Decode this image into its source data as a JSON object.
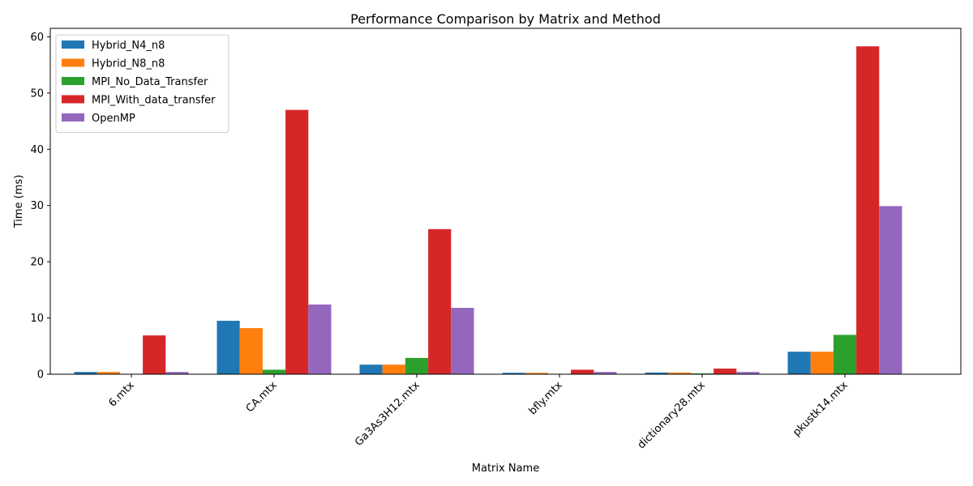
{
  "chart_data": {
    "type": "bar",
    "title": "Performance Comparison by Matrix and Method",
    "xlabel": "Matrix Name",
    "ylabel": "Time (ms)",
    "ylim": [
      0,
      61.5
    ],
    "yticks": [
      0,
      10,
      20,
      30,
      40,
      50,
      60
    ],
    "grid": false,
    "legend_position": "top-left",
    "categories": [
      "6.mtx",
      "CA.mtx",
      "Ga3As3H12.mtx",
      "bfly.mtx",
      "dictionary28.mtx",
      "pkustk14.mtx"
    ],
    "series": [
      {
        "name": "Hybrid_N4_n8",
        "color": "#1f77b4",
        "values": [
          0.4,
          9.5,
          1.7,
          0.25,
          0.3,
          4.0
        ]
      },
      {
        "name": "Hybrid_N8_n8",
        "color": "#ff7f0e",
        "values": [
          0.4,
          8.2,
          1.7,
          0.25,
          0.3,
          4.0
        ]
      },
      {
        "name": "MPI_No_Data_Transfer",
        "color": "#2ca02c",
        "values": [
          0.05,
          0.8,
          2.9,
          0.05,
          0.15,
          7.0
        ]
      },
      {
        "name": "MPI_With_data_transfer",
        "color": "#d62728",
        "values": [
          6.9,
          47.0,
          25.8,
          0.8,
          1.0,
          58.3
        ]
      },
      {
        "name": "OpenMP",
        "color": "#9467bd",
        "values": [
          0.4,
          12.4,
          11.8,
          0.4,
          0.4,
          29.9
        ]
      }
    ]
  }
}
